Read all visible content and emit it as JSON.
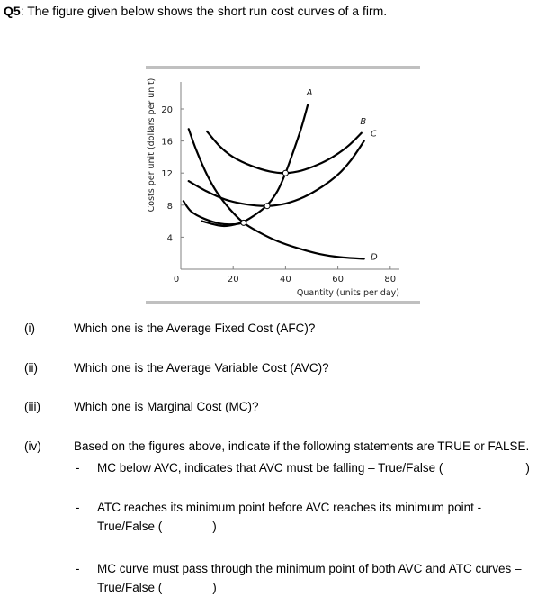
{
  "header": {
    "question_label": "Q5",
    "question_text": ": The figure given below shows the short run cost curves of a firm."
  },
  "chart_data": {
    "type": "line",
    "title": "",
    "xlabel": "Quantity (units per day)",
    "ylabel": "Costs per unit (dollars per unit)",
    "xlim": [
      0,
      80
    ],
    "ylim": [
      0,
      24
    ],
    "x_ticks": [
      "0",
      "20",
      "40",
      "60",
      "80"
    ],
    "y_ticks": [
      "4",
      "8",
      "12",
      "16",
      "20"
    ],
    "grid": false,
    "legend": "curve labels at line ends (A, B, C, D)",
    "series": [
      {
        "name": "A",
        "points": [
          [
            8,
            6.0
          ],
          [
            16,
            5.4
          ],
          [
            23,
            5.8
          ],
          [
            28,
            6.7
          ],
          [
            33,
            8.0
          ],
          [
            37,
            9.8
          ],
          [
            40,
            12.0
          ],
          [
            43,
            14.7
          ],
          [
            46,
            17.6
          ],
          [
            48.5,
            20.5
          ]
        ]
      },
      {
        "name": "B",
        "points": [
          [
            10,
            17.2
          ],
          [
            15,
            15.3
          ],
          [
            20,
            14.0
          ],
          [
            27,
            12.9
          ],
          [
            34,
            12.2
          ],
          [
            40,
            12.0
          ],
          [
            46,
            12.3
          ],
          [
            52,
            13.0
          ],
          [
            58,
            14.0
          ],
          [
            64,
            15.4
          ],
          [
            69,
            17.0
          ]
        ]
      },
      {
        "name": "C",
        "points": [
          [
            3,
            11.0
          ],
          [
            10,
            9.7
          ],
          [
            17,
            8.7
          ],
          [
            25,
            8.1
          ],
          [
            33,
            7.9
          ],
          [
            40,
            8.2
          ],
          [
            47,
            9.0
          ],
          [
            54,
            10.3
          ],
          [
            60,
            11.8
          ],
          [
            65,
            13.6
          ],
          [
            70,
            16.0
          ]
        ]
      },
      {
        "name": "D",
        "points": [
          [
            1,
            8.5
          ],
          [
            4,
            7.2
          ],
          [
            9,
            6.3
          ],
          [
            15,
            5.7
          ],
          [
            20,
            5.6
          ],
          [
            24,
            5.8
          ]
        ]
      },
      {
        "name": "D_tail",
        "points": [
          [
            3,
            17.5
          ],
          [
            6,
            14.8
          ],
          [
            10,
            11.8
          ],
          [
            14,
            9.5
          ],
          [
            19,
            7.4
          ],
          [
            24,
            5.8
          ],
          [
            30,
            4.6
          ],
          [
            37,
            3.5
          ],
          [
            45,
            2.6
          ],
          [
            53,
            1.9
          ],
          [
            61,
            1.5
          ],
          [
            70,
            1.3
          ]
        ]
      }
    ],
    "intersections": [
      [
        24,
        5.8
      ],
      [
        33,
        7.9
      ],
      [
        40,
        12.0
      ]
    ],
    "curve_labels": [
      {
        "text": "A",
        "x": 48,
        "y": 21.7
      },
      {
        "text": "B",
        "x": 68.5,
        "y": 18.1
      },
      {
        "text": "C",
        "x": 72.5,
        "y": 16.6
      },
      {
        "text": "D",
        "x": 72.5,
        "y": 1.2
      }
    ]
  },
  "questions": [
    {
      "num": "(i)",
      "text": "Which one is the Average Fixed Cost (AFC)?"
    },
    {
      "num": "(ii)",
      "text": "Which one is the Average Variable Cost (AVC)?"
    },
    {
      "num": "(iii)",
      "text": "Which one is Marginal Cost (MC)?"
    },
    {
      "num": "(iv)",
      "text": "Based on the figures above, indicate if the following statements are TRUE or FALSE."
    }
  ],
  "statements": [
    {
      "dash": "-",
      "line1": "MC below AVC, indicates that AVC must be falling – True/False (",
      "close": ")"
    },
    {
      "dash": "-",
      "line1": "ATC reaches its minimum point before AVC reaches its minimum point -",
      "line2": "True/False (",
      "close": ")"
    },
    {
      "dash": "-",
      "line1": "MC  curve must pass through the minimum point of both AVC and ATC curves –",
      "line2": "True/False (",
      "close": ")"
    }
  ],
  "colors": {
    "rule": "#c0c0c0",
    "axis": "#808080",
    "curve": "#000000",
    "text": "#000000"
  }
}
